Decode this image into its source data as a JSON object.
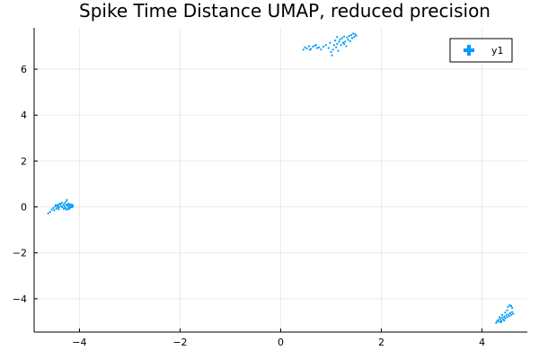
{
  "chart_data": {
    "type": "scatter",
    "title": "Spike Time Distance UMAP, reduced precision",
    "xlabel": "",
    "ylabel": "",
    "xlim": [
      -4.9,
      4.9
    ],
    "ylim": [
      -5.45,
      7.8
    ],
    "xticks": [
      -4,
      -2,
      0,
      2,
      4
    ],
    "xtick_labels": [
      "−4",
      "−2",
      "0",
      "2",
      "4"
    ],
    "yticks": [
      -4,
      -2,
      0,
      2,
      4,
      6
    ],
    "ytick_labels": [
      "−4",
      "−2",
      "0",
      "2",
      "4",
      "6"
    ],
    "grid": true,
    "legend_position": "top-right",
    "series": [
      {
        "name": "y1",
        "color": "#009AFA",
        "marker": "circle",
        "points": [
          [
            -4.62,
            -0.28
          ],
          [
            -4.58,
            -0.22
          ],
          [
            -4.55,
            -0.12
          ],
          [
            -4.52,
            -0.05
          ],
          [
            -4.5,
            -0.15
          ],
          [
            -4.48,
            0.02
          ],
          [
            -4.46,
            -0.08
          ],
          [
            -4.44,
            0.05
          ],
          [
            -4.42,
            0.1
          ],
          [
            -4.4,
            0.0
          ],
          [
            -4.38,
            0.12
          ],
          [
            -4.36,
            0.04
          ],
          [
            -4.34,
            -0.02
          ],
          [
            -4.32,
            0.08
          ],
          [
            -4.3,
            0.15
          ],
          [
            -4.29,
            0.02
          ],
          [
            -4.28,
            -0.05
          ],
          [
            -4.27,
            0.22
          ],
          [
            -4.26,
            0.1
          ],
          [
            -4.25,
            0.3
          ],
          [
            -4.24,
            0.06
          ],
          [
            -4.23,
            -0.06
          ],
          [
            -4.22,
            0.14
          ],
          [
            -4.21,
            0.02
          ],
          [
            -4.2,
            0.08
          ],
          [
            -4.19,
            -0.04
          ],
          [
            -4.18,
            0.12
          ],
          [
            -4.17,
            0.0
          ],
          [
            -4.16,
            0.05
          ],
          [
            -4.15,
            -0.02
          ],
          [
            -4.14,
            0.09
          ],
          [
            -4.13,
            0.03
          ],
          [
            -4.35,
            0.18
          ],
          [
            -4.41,
            -0.1
          ],
          [
            -4.47,
            0.08
          ],
          [
            -4.26,
            -0.12
          ],
          [
            -4.31,
            -0.08
          ],
          [
            -4.39,
            0.14
          ],
          [
            -4.43,
            -0.02
          ],
          [
            -4.21,
            -0.1
          ],
          [
            0.45,
            6.85
          ],
          [
            0.48,
            6.95
          ],
          [
            0.52,
            6.9
          ],
          [
            0.56,
            7.0
          ],
          [
            0.6,
            6.88
          ],
          [
            0.64,
            6.98
          ],
          [
            0.68,
            7.02
          ],
          [
            0.72,
            6.92
          ],
          [
            0.76,
            6.95
          ],
          [
            0.8,
            6.86
          ],
          [
            0.85,
            6.98
          ],
          [
            0.9,
            7.05
          ],
          [
            0.95,
            6.92
          ],
          [
            0.98,
            7.15
          ],
          [
            1.0,
            6.75
          ],
          [
            1.02,
            6.6
          ],
          [
            1.04,
            6.85
          ],
          [
            1.06,
            7.05
          ],
          [
            1.08,
            7.25
          ],
          [
            1.1,
            6.95
          ],
          [
            1.12,
            7.1
          ],
          [
            1.14,
            6.8
          ],
          [
            1.16,
            7.2
          ],
          [
            1.18,
            7.3
          ],
          [
            1.2,
            7.05
          ],
          [
            1.22,
            7.35
          ],
          [
            1.24,
            7.15
          ],
          [
            1.26,
            7.42
          ],
          [
            1.28,
            7.2
          ],
          [
            1.3,
            7.0
          ],
          [
            1.32,
            7.38
          ],
          [
            1.34,
            7.28
          ],
          [
            1.36,
            7.45
          ],
          [
            1.38,
            7.22
          ],
          [
            1.4,
            7.48
          ],
          [
            1.42,
            7.35
          ],
          [
            1.44,
            7.55
          ],
          [
            1.46,
            7.4
          ],
          [
            1.48,
            7.52
          ],
          [
            1.5,
            7.46
          ],
          [
            1.12,
            7.4
          ],
          [
            1.26,
            7.1
          ],
          [
            0.7,
            7.06
          ],
          [
            0.58,
            6.84
          ],
          [
            4.28,
            -5.05
          ],
          [
            4.3,
            -4.98
          ],
          [
            4.32,
            -4.92
          ],
          [
            4.34,
            -5.0
          ],
          [
            4.36,
            -4.88
          ],
          [
            4.38,
            -4.95
          ],
          [
            4.4,
            -4.82
          ],
          [
            4.42,
            -4.9
          ],
          [
            4.44,
            -4.78
          ],
          [
            4.46,
            -4.85
          ],
          [
            4.48,
            -4.72
          ],
          [
            4.5,
            -4.8
          ],
          [
            4.52,
            -4.68
          ],
          [
            4.54,
            -4.75
          ],
          [
            4.56,
            -4.62
          ],
          [
            4.58,
            -4.7
          ],
          [
            4.6,
            -4.58
          ],
          [
            4.62,
            -4.66
          ],
          [
            4.52,
            -4.35
          ],
          [
            4.55,
            -4.28
          ],
          [
            4.58,
            -4.32
          ],
          [
            4.6,
            -4.4
          ],
          [
            4.5,
            -4.5
          ],
          [
            4.46,
            -4.6
          ],
          [
            4.4,
            -4.7
          ],
          [
            4.35,
            -4.8
          ],
          [
            4.44,
            -4.95
          ],
          [
            4.38,
            -5.02
          ]
        ]
      }
    ]
  }
}
